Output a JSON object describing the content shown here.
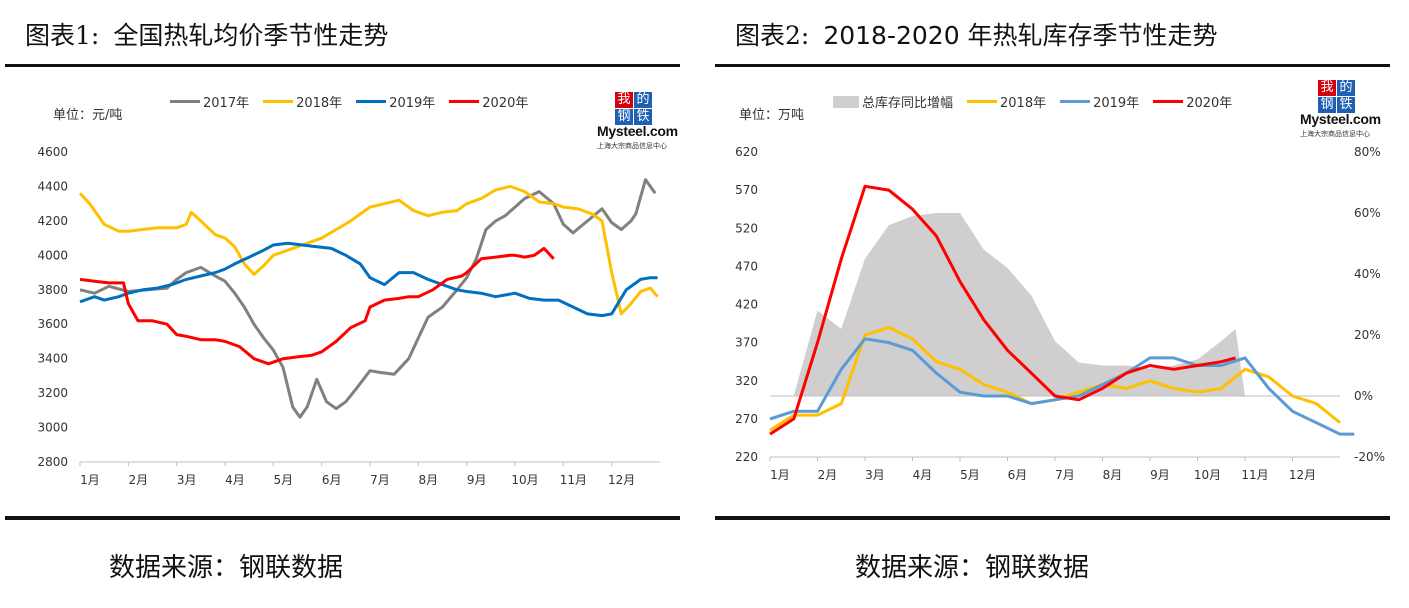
{
  "panels": [
    {
      "fig_label": "图表1:",
      "title": "全国热轧均价季节性走势",
      "unit": "单位：元/吨",
      "source": "数据来源：钢联数据",
      "logo": {
        "badge": [
          "我",
          "的",
          "钢",
          "铁"
        ],
        "brand": "Mysteel.com",
        "sub": "上海大宗商品信息中心"
      }
    },
    {
      "fig_label": "图表2:",
      "title": "2018-2020 年热轧库存季节性走势",
      "unit": "单位：万吨",
      "source": "数据来源：钢联数据",
      "logo": {
        "badge": [
          "我",
          "的",
          "钢",
          "铁"
        ],
        "brand": "Mysteel.com",
        "sub": "上海大宗商品信息中心"
      }
    }
  ],
  "colors": {
    "c2017": "#808080",
    "c2018": "#ffc000",
    "c2019_1": "#0070c0",
    "c2019_2": "#5b9bd5",
    "c2020": "#ff0000",
    "area": "#d0cece",
    "logo_red": "#d6000e",
    "logo_blue": "#1f5fb4"
  },
  "chart_data": [
    {
      "type": "line",
      "ylim": [
        2800,
        4600
      ],
      "yticks": [
        2800,
        3000,
        3200,
        3400,
        3600,
        3800,
        4000,
        4200,
        4400,
        4600
      ],
      "xlim": [
        0,
        12
      ],
      "x_tick_labels": [
        "1月",
        "2月",
        "3月",
        "4月",
        "5月",
        "6月",
        "7月",
        "8月",
        "9月",
        "10月",
        "11月",
        "12月"
      ],
      "series": [
        {
          "name": "2017年",
          "color_key": "c2017",
          "x": [
            0,
            0.3,
            0.6,
            1.0,
            1.4,
            1.8,
            2.0,
            2.2,
            2.5,
            2.8,
            3.0,
            3.2,
            3.4,
            3.6,
            3.8,
            4.0,
            4.2,
            4.4,
            4.55,
            4.7,
            4.9,
            5.1,
            5.3,
            5.5,
            5.7,
            6.0,
            6.2,
            6.5,
            6.8,
            7.0,
            7.2,
            7.5,
            7.8,
            8.0,
            8.2,
            8.4,
            8.6,
            8.8,
            9.0,
            9.2,
            9.5,
            9.8,
            10.0,
            10.2,
            10.5,
            10.8,
            11.0,
            11.2,
            11.4,
            11.5,
            11.7,
            11.9
          ],
          "y": [
            3800,
            3780,
            3820,
            3790,
            3800,
            3810,
            3860,
            3900,
            3930,
            3880,
            3850,
            3780,
            3700,
            3600,
            3520,
            3450,
            3350,
            3120,
            3060,
            3120,
            3280,
            3150,
            3110,
            3150,
            3220,
            3330,
            3320,
            3310,
            3400,
            3520,
            3640,
            3700,
            3800,
            3870,
            3980,
            4150,
            4200,
            4230,
            4280,
            4330,
            4370,
            4300,
            4180,
            4130,
            4200,
            4270,
            4190,
            4150,
            4200,
            4240,
            4440,
            4360
          ]
        },
        {
          "name": "2018年",
          "color_key": "c2018",
          "x": [
            0,
            0.2,
            0.5,
            0.8,
            1.0,
            1.3,
            1.6,
            2.0,
            2.2,
            2.3,
            2.5,
            2.8,
            3.0,
            3.2,
            3.4,
            3.6,
            3.8,
            4.0,
            4.3,
            4.6,
            5.0,
            5.3,
            5.6,
            6.0,
            6.3,
            6.6,
            6.9,
            7.2,
            7.5,
            7.8,
            8.0,
            8.3,
            8.6,
            8.9,
            9.2,
            9.5,
            9.8,
            10.0,
            10.3,
            10.6,
            10.8,
            11.0,
            11.2,
            11.4,
            11.6,
            11.8,
            11.95
          ],
          "y": [
            4360,
            4300,
            4180,
            4140,
            4140,
            4150,
            4160,
            4160,
            4180,
            4250,
            4200,
            4120,
            4100,
            4050,
            3950,
            3890,
            3940,
            4000,
            4030,
            4060,
            4100,
            4150,
            4200,
            4280,
            4300,
            4320,
            4260,
            4230,
            4250,
            4260,
            4300,
            4330,
            4380,
            4400,
            4370,
            4310,
            4300,
            4280,
            4270,
            4240,
            4200,
            3900,
            3660,
            3720,
            3790,
            3810,
            3760
          ]
        },
        {
          "name": "2019年",
          "color_key": "c2019_1",
          "x": [
            0,
            0.3,
            0.5,
            0.8,
            1.0,
            1.3,
            1.6,
            1.9,
            2.2,
            2.5,
            2.8,
            3.0,
            3.2,
            3.5,
            3.8,
            4.0,
            4.3,
            4.6,
            4.9,
            5.2,
            5.5,
            5.8,
            6.0,
            6.3,
            6.6,
            6.9,
            7.2,
            7.5,
            7.8,
            8.0,
            8.3,
            8.6,
            9.0,
            9.3,
            9.6,
            9.9,
            10.2,
            10.5,
            10.8,
            11.0,
            11.3,
            11.6,
            11.8,
            11.95
          ],
          "y": [
            3730,
            3760,
            3740,
            3760,
            3780,
            3800,
            3810,
            3830,
            3860,
            3880,
            3900,
            3920,
            3950,
            3990,
            4030,
            4060,
            4070,
            4060,
            4050,
            4040,
            4000,
            3950,
            3870,
            3830,
            3900,
            3900,
            3860,
            3830,
            3800,
            3790,
            3780,
            3760,
            3780,
            3750,
            3740,
            3740,
            3700,
            3660,
            3650,
            3660,
            3800,
            3860,
            3870,
            3870
          ]
        },
        {
          "name": "2020年",
          "color_key": "c2020",
          "x": [
            0,
            0.3,
            0.6,
            0.9,
            1.0,
            1.2,
            1.5,
            1.8,
            2.0,
            2.2,
            2.5,
            2.8,
            3.0,
            3.3,
            3.6,
            3.9,
            4.2,
            4.5,
            4.8,
            5.0,
            5.3,
            5.6,
            5.9,
            6.0,
            6.3,
            6.6,
            6.8,
            7.0,
            7.3,
            7.6,
            7.9,
            8.0,
            8.3,
            8.6,
            8.9,
            9.0,
            9.2,
            9.4,
            9.6,
            9.8
          ],
          "y": [
            3860,
            3850,
            3840,
            3840,
            3720,
            3620,
            3620,
            3600,
            3540,
            3530,
            3510,
            3510,
            3500,
            3470,
            3400,
            3370,
            3400,
            3410,
            3420,
            3440,
            3500,
            3580,
            3620,
            3700,
            3740,
            3750,
            3760,
            3760,
            3800,
            3860,
            3880,
            3900,
            3980,
            3990,
            4000,
            4000,
            3990,
            4000,
            4040,
            3980
          ]
        }
      ]
    },
    {
      "type": "line",
      "ylim": [
        220,
        620
      ],
      "yticks": [
        220,
        270,
        320,
        370,
        420,
        470,
        520,
        570,
        620
      ],
      "y2lim": [
        -20,
        80
      ],
      "y2ticks": [
        "-20%",
        "0%",
        "20%",
        "40%",
        "60%",
        "80%"
      ],
      "xlim": [
        0,
        12
      ],
      "x_tick_labels": [
        "1月",
        "2月",
        "3月",
        "4月",
        "5月",
        "6月",
        "7月",
        "8月",
        "9月",
        "10月",
        "11月",
        "12月"
      ],
      "area": {
        "name": "总库存同比增幅",
        "x": [
          0,
          0.5,
          1.0,
          1.5,
          2.0,
          2.5,
          3.0,
          3.5,
          4.0,
          4.5,
          5.0,
          5.5,
          6.0,
          6.5,
          7.0,
          7.5,
          8.0,
          8.5,
          9.0,
          9.5,
          9.8,
          10.0
        ],
        "y": [
          0,
          0,
          28,
          22,
          45,
          56,
          59,
          60,
          60,
          48,
          42,
          33,
          18,
          11,
          10,
          10,
          9,
          10,
          12,
          18,
          22,
          0
        ]
      },
      "series": [
        {
          "name": "2018年",
          "color_key": "c2018",
          "x": [
            0,
            0.5,
            1.0,
            1.5,
            2.0,
            2.5,
            3.0,
            3.5,
            4.0,
            4.5,
            5.0,
            5.5,
            6.0,
            6.5,
            7.0,
            7.5,
            8.0,
            8.5,
            9.0,
            9.5,
            10.0,
            10.5,
            11.0,
            11.5,
            12.0
          ],
          "y": [
            255,
            275,
            275,
            290,
            380,
            390,
            375,
            345,
            335,
            315,
            305,
            290,
            295,
            305,
            315,
            310,
            320,
            310,
            305,
            310,
            335,
            325,
            300,
            290,
            265
          ]
        },
        {
          "name": "2019年",
          "color_key": "c2019_2",
          "x": [
            0,
            0.5,
            1.0,
            1.5,
            2.0,
            2.5,
            3.0,
            3.5,
            4.0,
            4.5,
            5.0,
            5.5,
            6.0,
            6.5,
            7.0,
            7.5,
            8.0,
            8.5,
            9.0,
            9.5,
            10.0,
            10.5,
            11.0,
            11.5,
            12.0,
            12.3
          ],
          "y": [
            270,
            280,
            280,
            335,
            375,
            370,
            360,
            330,
            305,
            300,
            300,
            290,
            295,
            300,
            315,
            330,
            350,
            350,
            340,
            340,
            350,
            310,
            280,
            265,
            250,
            250
          ]
        },
        {
          "name": "2020年",
          "color_key": "c2020",
          "x": [
            0,
            0.5,
            1.0,
            1.5,
            2.0,
            2.5,
            3.0,
            3.5,
            4.0,
            4.5,
            5.0,
            5.5,
            6.0,
            6.5,
            7.0,
            7.5,
            8.0,
            8.5,
            9.0,
            9.5,
            9.8
          ],
          "y": [
            250,
            270,
            370,
            480,
            575,
            570,
            545,
            510,
            450,
            400,
            360,
            330,
            300,
            295,
            310,
            330,
            340,
            335,
            340,
            345,
            350
          ]
        }
      ]
    }
  ]
}
